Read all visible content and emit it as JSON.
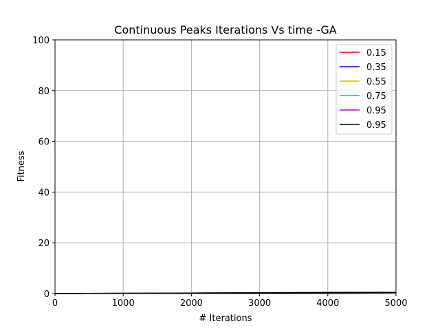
{
  "chart_data": {
    "type": "line",
    "title": "Continuous Peaks Iterations Vs time -GA",
    "xlabel": "# Iterations",
    "ylabel": "Fitness",
    "xlim": [
      0,
      5000
    ],
    "ylim": [
      0,
      100
    ],
    "xticks": [
      0,
      1000,
      2000,
      3000,
      4000,
      5000
    ],
    "yticks": [
      0,
      20,
      40,
      60,
      80,
      100
    ],
    "grid": true,
    "legend_placement": "top-right",
    "series": [
      {
        "name": "0.15",
        "color": "#ff0000",
        "x": [
          0,
          1000,
          2000,
          3000,
          4000,
          5000
        ],
        "y": [
          0.0,
          0.1,
          0.2,
          0.3,
          0.4,
          0.5
        ]
      },
      {
        "name": "0.35",
        "color": "#0000ff",
        "x": [
          0,
          1000,
          2000,
          3000,
          4000,
          5000
        ],
        "y": [
          0.0,
          0.1,
          0.2,
          0.3,
          0.4,
          0.5
        ]
      },
      {
        "name": "0.55",
        "color": "#bfbf00",
        "x": [
          0,
          1000,
          2000,
          3000,
          4000,
          5000
        ],
        "y": [
          0.0,
          0.1,
          0.2,
          0.3,
          0.4,
          0.5
        ]
      },
      {
        "name": "0.75",
        "color": "#00bfbf",
        "x": [
          0,
          1000,
          2000,
          3000,
          4000,
          5000
        ],
        "y": [
          0.0,
          0.1,
          0.2,
          0.3,
          0.4,
          0.5
        ]
      },
      {
        "name": "0.95",
        "color": "#bf00bf",
        "x": [
          0,
          1000,
          2000,
          3000,
          4000,
          5000
        ],
        "y": [
          0.0,
          0.1,
          0.2,
          0.3,
          0.4,
          0.5
        ]
      },
      {
        "name": "0.95",
        "color": "#000000",
        "x": [
          0,
          1000,
          2000,
          3000,
          4000,
          5000
        ],
        "y": [
          0.0,
          0.1,
          0.2,
          0.3,
          0.4,
          0.5
        ]
      }
    ]
  }
}
